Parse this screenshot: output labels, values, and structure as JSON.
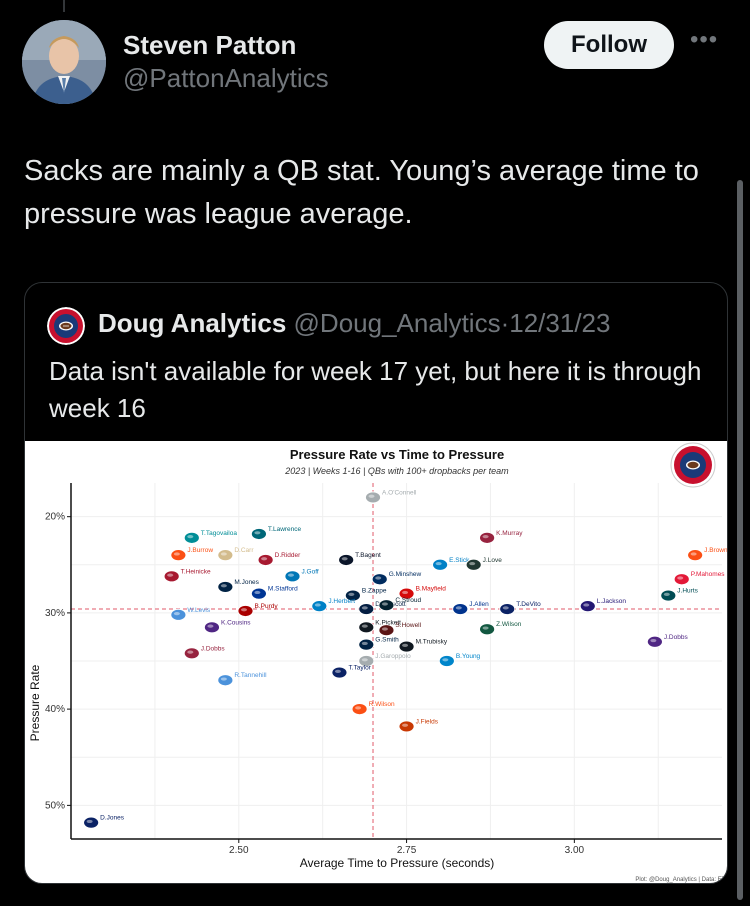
{
  "tweet": {
    "author_name": "Steven Patton",
    "author_handle": "@PattonAnalytics",
    "follow_label": "Follow",
    "more_icon": "more-icon",
    "text": "Sacks are mainly a QB stat. Young’s average time to pressure was league average."
  },
  "quote": {
    "author_name": "Doug Analytics",
    "author_handle": "@Doug_Analytics",
    "separator": "·",
    "date": "12/31/23",
    "text": "Data isn't available for week 17 yet, but here it is through week 16"
  },
  "chart_data": {
    "type": "scatter",
    "title": "Pressure Rate vs Time to Pressure",
    "subtitle": "2023 | Weeks 1-16 | QBs with 100+ dropbacks per team",
    "xlabel": "Average Time to Pressure (seconds)",
    "ylabel": "Pressure Rate",
    "xlim": [
      2.25,
      3.22
    ],
    "ylim": [
      0.535,
      0.165
    ],
    "y_reversed": true,
    "xticks": [
      2.5,
      2.75,
      3.0
    ],
    "xtick_labels": [
      "2.50",
      "2.75",
      "3.00"
    ],
    "yticks": [
      0.2,
      0.3,
      0.4,
      0.5
    ],
    "ytick_labels": [
      "20%",
      "30%",
      "40%",
      "50%"
    ],
    "grid": true,
    "avg_x": 2.7,
    "avg_y": 0.296,
    "footer": "Plot: @Doug_Analytics | Data: FT",
    "points": [
      {
        "label": "A.O'Connell",
        "x": 2.7,
        "y": 0.18,
        "color": "#a5acaf"
      },
      {
        "label": "T.Tagovailoa",
        "x": 2.43,
        "y": 0.222,
        "color": "#008e97"
      },
      {
        "label": "T.Lawrence",
        "x": 2.53,
        "y": 0.218,
        "color": "#006778"
      },
      {
        "label": "J.Burrow",
        "x": 2.41,
        "y": 0.24,
        "color": "#fb4f14"
      },
      {
        "label": "D.Carr",
        "x": 2.48,
        "y": 0.24,
        "color": "#d3bc8d"
      },
      {
        "label": "D.Ridder",
        "x": 2.54,
        "y": 0.245,
        "color": "#a71930"
      },
      {
        "label": "T.Bagent",
        "x": 2.66,
        "y": 0.245,
        "color": "#0b162a"
      },
      {
        "label": "K.Murray",
        "x": 2.87,
        "y": 0.222,
        "color": "#97233f"
      },
      {
        "label": "J.Browning",
        "x": 3.18,
        "y": 0.24,
        "color": "#fb4f14"
      },
      {
        "label": "E.Stick",
        "x": 2.8,
        "y": 0.25,
        "color": "#0080c6"
      },
      {
        "label": "J.Love",
        "x": 2.85,
        "y": 0.25,
        "color": "#203731"
      },
      {
        "label": "T.Heinicke",
        "x": 2.4,
        "y": 0.262,
        "color": "#a71930"
      },
      {
        "label": "J.Goff",
        "x": 2.58,
        "y": 0.262,
        "color": "#0076b6"
      },
      {
        "label": "G.Minshew",
        "x": 2.71,
        "y": 0.265,
        "color": "#002c5f"
      },
      {
        "label": "P.Mahomes",
        "x": 3.16,
        "y": 0.265,
        "color": "#e31837"
      },
      {
        "label": "M.Jones",
        "x": 2.48,
        "y": 0.273,
        "color": "#002244"
      },
      {
        "label": "M.Stafford",
        "x": 2.53,
        "y": 0.28,
        "color": "#003594"
      },
      {
        "label": "B.Zappe",
        "x": 2.67,
        "y": 0.282,
        "color": "#002244"
      },
      {
        "label": "B.Mayfield",
        "x": 2.75,
        "y": 0.28,
        "color": "#d50a0a"
      },
      {
        "label": "J.Hurts",
        "x": 3.14,
        "y": 0.282,
        "color": "#004c54"
      },
      {
        "label": "W.Levis",
        "x": 2.41,
        "y": 0.302,
        "color": "#4b92db"
      },
      {
        "label": "J.Herbert",
        "x": 2.62,
        "y": 0.293,
        "color": "#0080c6"
      },
      {
        "label": "D.Prescott",
        "x": 2.69,
        "y": 0.296,
        "color": "#041e42"
      },
      {
        "label": "C.Stroud",
        "x": 2.72,
        "y": 0.292,
        "color": "#03202f"
      },
      {
        "label": "J.Allen",
        "x": 2.83,
        "y": 0.296,
        "color": "#00338d"
      },
      {
        "label": "T.DeVito",
        "x": 2.9,
        "y": 0.296,
        "color": "#0b2265"
      },
      {
        "label": "L.Jackson",
        "x": 3.02,
        "y": 0.293,
        "color": "#241773"
      },
      {
        "label": "B.Purdy",
        "x": 2.51,
        "y": 0.298,
        "color": "#aa0000"
      },
      {
        "label": "K.Cousins",
        "x": 2.46,
        "y": 0.315,
        "color": "#4f2683"
      },
      {
        "label": "K.Pickett",
        "x": 2.69,
        "y": 0.315,
        "color": "#101820"
      },
      {
        "label": "S.Howell",
        "x": 2.72,
        "y": 0.318,
        "color": "#5a1414"
      },
      {
        "label": "Z.Wilson",
        "x": 2.87,
        "y": 0.317,
        "color": "#125740"
      },
      {
        "label": "J.Dobbs",
        "x": 3.12,
        "y": 0.33,
        "color": "#4f2683"
      },
      {
        "label": "G.Smith",
        "x": 2.69,
        "y": 0.333,
        "color": "#002244"
      },
      {
        "label": "M.Trubisky",
        "x": 2.75,
        "y": 0.335,
        "color": "#101820"
      },
      {
        "label": "J.Dobbs",
        "x": 2.43,
        "y": 0.342,
        "color": "#97233f"
      },
      {
        "label": "J.Garoppolo",
        "x": 2.69,
        "y": 0.35,
        "color": "#a5acaf"
      },
      {
        "label": "B.Young",
        "x": 2.81,
        "y": 0.35,
        "color": "#0085ca"
      },
      {
        "label": "T.Taylor",
        "x": 2.65,
        "y": 0.362,
        "color": "#0b2265"
      },
      {
        "label": "R.Tannehill",
        "x": 2.48,
        "y": 0.37,
        "color": "#4b92db"
      },
      {
        "label": "R.Wilson",
        "x": 2.68,
        "y": 0.4,
        "color": "#fb4f14"
      },
      {
        "label": "J.Fields",
        "x": 2.75,
        "y": 0.418,
        "color": "#c83803"
      },
      {
        "label": "D.Jones",
        "x": 2.28,
        "y": 0.518,
        "color": "#0b2265"
      }
    ]
  }
}
